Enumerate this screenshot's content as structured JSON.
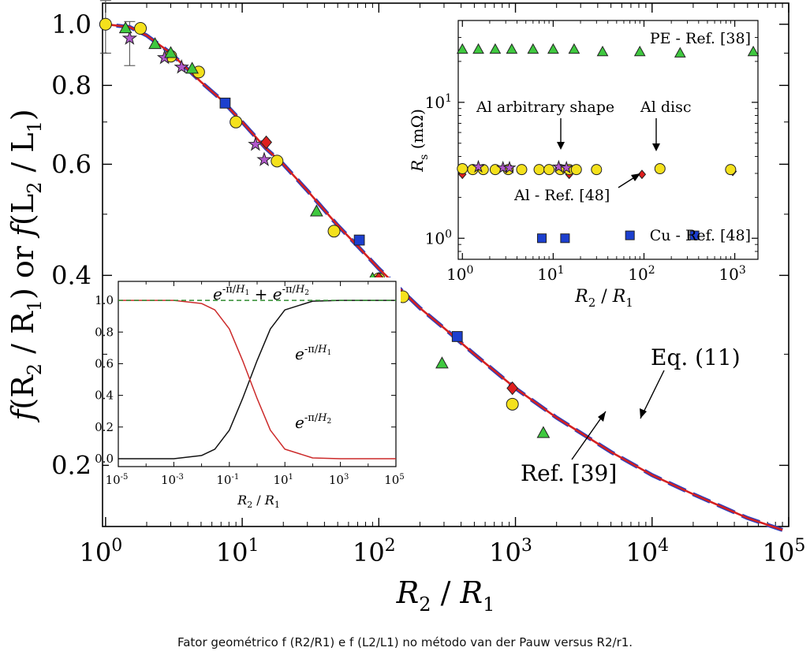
{
  "caption": "Fator geométrico f (R2/R1) e f (L2/L1) no método van der Pauw versus R2/r1.",
  "chart_data": [
    {
      "id": "main",
      "type": "line",
      "xscale": "log",
      "yscale": "log",
      "xlim": [
        0.95,
        100000
      ],
      "ylim": [
        0.16,
        1.08
      ],
      "xticks": [
        {
          "value": 1,
          "base": "10",
          "exp": "0"
        },
        {
          "value": 10,
          "base": "10",
          "exp": "1"
        },
        {
          "value": 100,
          "base": "10",
          "exp": "2"
        },
        {
          "value": 1000,
          "base": "10",
          "exp": "3"
        },
        {
          "value": 10000,
          "base": "10",
          "exp": "4"
        },
        {
          "value": 100000,
          "base": "10",
          "exp": "5"
        }
      ],
      "yticks": [
        {
          "value": 0.2,
          "label": "0.2"
        },
        {
          "value": 0.4,
          "label": "0.4"
        },
        {
          "value": 0.6,
          "label": "0.6"
        },
        {
          "value": 0.8,
          "label": "0.8"
        },
        {
          "value": 1.0,
          "label": "1.0"
        }
      ],
      "xlabel": {
        "a": "R",
        "a_sub": "2",
        "sep": " / ",
        "b": "R",
        "b_sub": "1"
      },
      "ylabel": {
        "f": "f",
        "l1": "(R",
        "s1": "2",
        "l2": " / R",
        "s2": "1",
        "l3": ") or ",
        "f2": "f",
        "l4": "(L",
        "s3": "2",
        "l5": " / L",
        "s4": "1",
        "l6": ")"
      },
      "series": [
        {
          "name": "Eq. (11)",
          "style": "solid",
          "color": "#d42020",
          "x": [
            1,
            1.5,
            2,
            3,
            5,
            7,
            10,
            15,
            20,
            30,
            50,
            70,
            100,
            200,
            300,
            500,
            1000,
            2000,
            5000,
            10000,
            20000,
            50000,
            90000
          ],
          "y": [
            1.0,
            0.99,
            0.96,
            0.9,
            0.81,
            0.76,
            0.7,
            0.635,
            0.6,
            0.545,
            0.48,
            0.445,
            0.41,
            0.355,
            0.33,
            0.3,
            0.265,
            0.238,
            0.21,
            0.193,
            0.18,
            0.165,
            0.158
          ]
        },
        {
          "name": "Ref. [39]",
          "style": "dashed",
          "color": "#2a3fbf",
          "x": [
            1.2,
            1.5,
            2,
            3,
            5,
            7,
            10,
            15,
            20,
            30,
            50,
            70,
            100,
            200,
            300,
            500,
            1000,
            2000,
            5000,
            10000,
            20000,
            50000,
            90000
          ],
          "y": [
            0.995,
            0.99,
            0.96,
            0.9,
            0.81,
            0.76,
            0.7,
            0.635,
            0.6,
            0.545,
            0.48,
            0.445,
            0.41,
            0.355,
            0.33,
            0.3,
            0.265,
            0.238,
            0.21,
            0.193,
            0.18,
            0.165,
            0.158
          ]
        },
        {
          "name": "",
          "marker": "circle",
          "color": "#f4e11c",
          "x": [
            1.0,
            1.8,
            3.0,
            4.8,
            9.0,
            18,
            47,
            100,
            150,
            950
          ],
          "y": [
            1.0,
            0.985,
            0.89,
            0.84,
            0.7,
            0.607,
            0.47,
            0.395,
            0.37,
            0.25
          ]
        },
        {
          "name": "",
          "marker": "star",
          "color": "#b159cc",
          "x": [
            1.5,
            2.7,
            3.6,
            12.5,
            14.5
          ],
          "y": [
            0.95,
            0.885,
            0.855,
            0.645,
            0.61
          ]
        },
        {
          "name": "",
          "marker": "triangle",
          "color": "#3fc83f",
          "x": [
            1.4,
            2.3,
            3.0,
            4.3,
            35,
            90,
            290,
            1600
          ],
          "y": [
            0.985,
            0.93,
            0.9,
            0.85,
            0.505,
            0.395,
            0.29,
            0.225
          ]
        },
        {
          "name": "",
          "marker": "square",
          "color": "#1c3fcf",
          "x": [
            7.5,
            72,
            375
          ],
          "y": [
            0.75,
            0.455,
            0.32
          ]
        },
        {
          "name": "",
          "marker": "diamond",
          "color": "#e01f1f",
          "x": [
            15,
            100,
            950
          ],
          "y": [
            0.65,
            0.395,
            0.265
          ]
        }
      ],
      "error_bars": [
        {
          "x": 1.0,
          "y": 1.0,
          "low": 0.9,
          "high": 1.09
        },
        {
          "x": 1.5,
          "y": 0.95,
          "low": 0.86,
          "high": 1.01
        }
      ],
      "annotations": [
        {
          "text": "Eq. (11)",
          "target_x": 14000,
          "target_y": 0.19
        },
        {
          "text": "Ref. [39]",
          "target_x": 4400,
          "target_y": 0.212
        }
      ]
    },
    {
      "id": "inset_rs",
      "type": "scatter",
      "xscale": "log",
      "yscale": "log",
      "xlim": [
        0.9,
        1800
      ],
      "ylim": [
        0.7,
        40
      ],
      "xticks": [
        {
          "value": 1,
          "base": "10",
          "exp": "0"
        },
        {
          "value": 10,
          "base": "10",
          "exp": "1"
        },
        {
          "value": 100,
          "base": "10",
          "exp": "2"
        },
        {
          "value": 1000,
          "base": "10",
          "exp": "3"
        }
      ],
      "yticks": [
        {
          "value": 1,
          "base": "10",
          "exp": "0"
        },
        {
          "value": 10,
          "base": "10",
          "exp": "1"
        }
      ],
      "xlabel": {
        "a": "R",
        "a_sub": "2",
        "sep": " / ",
        "b": "R",
        "b_sub": "1"
      },
      "ylabel": {
        "a": "R",
        "a_sub": "s",
        "unit": " (mΩ)"
      },
      "series": [
        {
          "name": "PE - Ref. [38]",
          "marker": "triangle",
          "color": "#3fc83f",
          "x": [
            1.0,
            1.5,
            2.3,
            3.5,
            6,
            10,
            17,
            35,
            90,
            250,
            1600
          ],
          "y": [
            24.5,
            24.5,
            24.5,
            24.5,
            24.5,
            24.5,
            24.5,
            23.5,
            23.5,
            23,
            23.5
          ]
        },
        {
          "name": "Al - Ref. [48]",
          "marker": "diamond",
          "color": "#e01f1f",
          "x": [
            1.0,
            15,
            95,
            950
          ],
          "y": [
            2.95,
            2.95,
            2.95,
            3.1
          ]
        },
        {
          "name": "",
          "marker": "circle",
          "color": "#f4e11c",
          "x": [
            1.0,
            1.3,
            1.7,
            2.3,
            3.2,
            4.5,
            7,
            9,
            12,
            15,
            18,
            30,
            150,
            900
          ],
          "y": [
            3.25,
            3.2,
            3.2,
            3.2,
            3.2,
            3.2,
            3.2,
            3.2,
            3.2,
            3.2,
            3.2,
            3.2,
            3.25,
            3.2
          ]
        },
        {
          "name": "",
          "marker": "star",
          "color": "#b159cc",
          "x": [
            1.5,
            2.8,
            3.3,
            11.5,
            14
          ],
          "y": [
            3.35,
            3.3,
            3.3,
            3.35,
            3.3
          ]
        },
        {
          "name": "Cu - Ref. [48]",
          "marker": "square",
          "color": "#1c3fcf",
          "x": [
            7.5,
            13.5,
            70,
            360
          ],
          "y": [
            1.0,
            1.0,
            1.05,
            1.05
          ]
        }
      ],
      "annotations": [
        {
          "text": "Al arbitrary shape",
          "target_x": 12,
          "target_y": 3.8
        },
        {
          "text": "Al disc",
          "target_x": 140,
          "target_y": 3.7
        },
        {
          "text": "Al - Ref. [48]",
          "target_x": 80,
          "target_y": 2.8
        }
      ]
    },
    {
      "id": "inset_exp",
      "type": "line",
      "xscale": "log",
      "xlim": [
        1e-05,
        100000
      ],
      "ylim": [
        -0.05,
        1.12
      ],
      "xticks": [
        {
          "value": 1e-05,
          "base": "10",
          "exp": "-5"
        },
        {
          "value": 0.001,
          "base": "10",
          "exp": "-3"
        },
        {
          "value": 0.1,
          "base": "10",
          "exp": "-1"
        },
        {
          "value": 10,
          "base": "10",
          "exp": "1"
        },
        {
          "value": 1000,
          "base": "10",
          "exp": "3"
        },
        {
          "value": 100000,
          "base": "10",
          "exp": "5"
        }
      ],
      "yticks": [
        {
          "value": 0.0,
          "label": "0.0"
        },
        {
          "value": 0.2,
          "label": "0.2"
        },
        {
          "value": 0.4,
          "label": "0.4"
        },
        {
          "value": 0.6,
          "label": "0.6"
        },
        {
          "value": 0.8,
          "label": "0.8"
        },
        {
          "value": 1.0,
          "label": "1.0"
        }
      ],
      "xlabel": {
        "a": "R",
        "a_sub": "2",
        "sep": " / ",
        "b": "R",
        "b_sub": "1"
      },
      "series": [
        {
          "name": "e^-π/H1",
          "color": "#111111",
          "style": "solid",
          "x": [
            1e-05,
            0.0001,
            0.001,
            0.01,
            0.03,
            0.1,
            0.3,
            1,
            3,
            10,
            100,
            1000,
            100000
          ],
          "y": [
            0.0,
            0.0,
            0.0,
            0.02,
            0.06,
            0.18,
            0.38,
            0.62,
            0.82,
            0.94,
            0.995,
            1.0,
            1.0
          ]
        },
        {
          "name": "e^-π/H2",
          "color": "#cc2a2a",
          "style": "solid",
          "x": [
            1e-05,
            0.0001,
            0.001,
            0.01,
            0.03,
            0.1,
            0.3,
            1,
            3,
            10,
            100,
            1000,
            100000
          ],
          "y": [
            1.0,
            1.0,
            1.0,
            0.98,
            0.94,
            0.82,
            0.62,
            0.38,
            0.18,
            0.06,
            0.005,
            0.0,
            0.0
          ]
        },
        {
          "name": "sum",
          "color": "#2e8b2e",
          "style": "dashed",
          "x": [
            1e-05,
            100000
          ],
          "y": [
            1.0,
            1.0
          ]
        }
      ],
      "labels": {
        "sum": {
          "e": "e",
          "s1": "-π/",
          "h1": "H",
          "i1": "1",
          "plus": " + ",
          "s2": "-π/",
          "h2": "H",
          "i2": "2"
        },
        "h1": {
          "e": "e",
          "s": "-π/",
          "h": "H",
          "i": "1"
        },
        "h2": {
          "e": "e",
          "s": "-π/",
          "h": "H",
          "i": "2"
        }
      }
    }
  ]
}
